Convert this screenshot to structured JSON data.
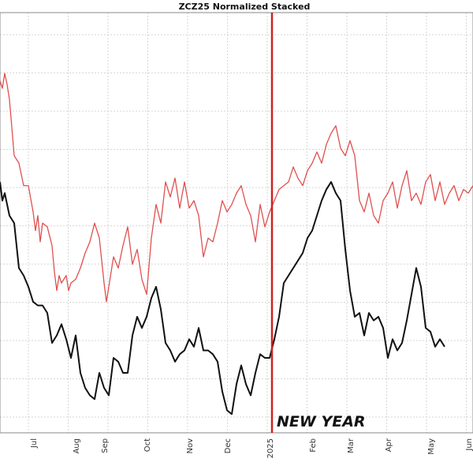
{
  "chart_data": {
    "type": "line",
    "title": "ZCZ25 Normalized Stacked",
    "xlabel": "",
    "ylabel": "",
    "grid": true,
    "legend": "none",
    "x_tick_labels": [
      "Jul",
      "Aug",
      "Sep",
      "Oct",
      "Nov",
      "Dec",
      "2025",
      "Feb",
      "Mar",
      "Apr",
      "May",
      "Jun"
    ],
    "x_range": [
      0,
      100
    ],
    "x_ticks": [
      7,
      16,
      22,
      31,
      40,
      48,
      57,
      66,
      74,
      82,
      91,
      99
    ],
    "vertical_marker": {
      "x": 57.5,
      "label": "NEW YEAR",
      "color": "#cc2222"
    },
    "ylim": [
      0,
      100
    ],
    "series": [
      {
        "color": "#e05050",
        "values": [
          [
            0,
            90
          ],
          [
            0.5,
            88
          ],
          [
            1,
            92
          ],
          [
            1.5,
            89
          ],
          [
            2,
            85
          ],
          [
            3,
            70
          ],
          [
            4,
            68
          ],
          [
            5,
            62
          ],
          [
            6,
            62
          ],
          [
            7,
            55
          ],
          [
            7.5,
            50
          ],
          [
            8,
            54
          ],
          [
            8.5,
            47
          ],
          [
            9,
            52
          ],
          [
            10,
            51
          ],
          [
            11,
            46
          ],
          [
            11.5,
            39
          ],
          [
            12,
            34
          ],
          [
            12.5,
            38
          ],
          [
            13,
            36
          ],
          [
            14,
            38
          ],
          [
            14.5,
            34
          ],
          [
            15,
            36
          ],
          [
            16,
            37
          ],
          [
            17,
            40
          ],
          [
            18,
            44
          ],
          [
            19,
            47
          ],
          [
            20,
            52
          ],
          [
            21,
            48
          ],
          [
            22,
            36
          ],
          [
            22.5,
            31
          ],
          [
            23,
            35
          ],
          [
            24,
            43
          ],
          [
            25,
            40
          ],
          [
            26,
            46
          ],
          [
            27,
            51
          ],
          [
            28,
            41
          ],
          [
            29,
            45
          ],
          [
            30,
            37
          ],
          [
            31,
            33
          ],
          [
            32,
            48
          ],
          [
            33,
            57
          ],
          [
            34,
            52
          ],
          [
            35,
            63
          ],
          [
            36,
            59
          ],
          [
            37,
            64
          ],
          [
            38,
            56
          ],
          [
            39,
            63
          ],
          [
            40,
            56
          ],
          [
            41,
            58
          ],
          [
            42,
            54
          ],
          [
            43,
            43
          ],
          [
            44,
            48
          ],
          [
            45,
            47
          ],
          [
            46,
            52
          ],
          [
            47,
            58
          ],
          [
            48,
            55
          ],
          [
            49,
            57
          ],
          [
            50,
            60
          ],
          [
            51,
            62
          ],
          [
            52,
            57
          ],
          [
            53,
            54
          ],
          [
            54,
            47
          ],
          [
            55,
            57
          ],
          [
            56,
            51
          ],
          [
            57,
            55
          ],
          [
            58,
            58
          ],
          [
            59,
            61
          ],
          [
            60,
            62
          ],
          [
            61,
            63
          ],
          [
            62,
            67
          ],
          [
            63,
            64
          ],
          [
            64,
            62
          ],
          [
            65,
            66
          ],
          [
            66,
            68
          ],
          [
            67,
            71
          ],
          [
            68,
            68
          ],
          [
            69,
            73
          ],
          [
            70,
            76
          ],
          [
            71,
            78
          ],
          [
            72,
            72
          ],
          [
            73,
            70
          ],
          [
            74,
            74
          ],
          [
            75,
            70
          ],
          [
            76,
            58
          ],
          [
            77,
            55
          ],
          [
            78,
            60
          ],
          [
            79,
            54
          ],
          [
            80,
            52
          ],
          [
            81,
            58
          ],
          [
            82,
            60
          ],
          [
            83,
            63
          ],
          [
            84,
            56
          ],
          [
            85,
            62
          ],
          [
            86,
            66
          ],
          [
            87,
            58
          ],
          [
            88,
            60
          ],
          [
            89,
            57
          ],
          [
            90,
            63
          ],
          [
            91,
            65
          ],
          [
            92,
            58
          ],
          [
            93,
            63
          ],
          [
            94,
            57
          ],
          [
            95,
            60
          ],
          [
            96,
            62
          ],
          [
            97,
            58
          ],
          [
            98,
            61
          ],
          [
            99,
            60
          ],
          [
            100,
            62
          ]
        ]
      },
      {
        "color": "#111111",
        "values": [
          [
            0,
            63
          ],
          [
            0.5,
            58
          ],
          [
            1,
            60
          ],
          [
            2,
            54
          ],
          [
            3,
            52
          ],
          [
            4,
            40
          ],
          [
            5,
            38
          ],
          [
            6,
            35
          ],
          [
            7,
            31
          ],
          [
            8,
            30
          ],
          [
            9,
            30
          ],
          [
            10,
            28
          ],
          [
            11,
            20
          ],
          [
            12,
            22
          ],
          [
            13,
            25
          ],
          [
            14,
            21
          ],
          [
            15,
            16
          ],
          [
            16,
            22
          ],
          [
            17,
            12
          ],
          [
            18,
            8
          ],
          [
            19,
            6
          ],
          [
            20,
            5
          ],
          [
            21,
            12
          ],
          [
            22,
            8
          ],
          [
            23,
            6
          ],
          [
            24,
            16
          ],
          [
            25,
            15
          ],
          [
            26,
            12
          ],
          [
            27,
            12
          ],
          [
            28,
            22
          ],
          [
            29,
            27
          ],
          [
            30,
            24
          ],
          [
            31,
            27
          ],
          [
            32,
            32
          ],
          [
            33,
            35
          ],
          [
            34,
            29
          ],
          [
            35,
            20
          ],
          [
            36,
            18
          ],
          [
            37,
            15
          ],
          [
            38,
            17
          ],
          [
            39,
            18
          ],
          [
            40,
            21
          ],
          [
            41,
            19
          ],
          [
            42,
            24
          ],
          [
            43,
            18
          ],
          [
            44,
            18
          ],
          [
            45,
            17
          ],
          [
            46,
            15
          ],
          [
            47,
            7
          ],
          [
            48,
            2
          ],
          [
            49,
            1
          ],
          [
            50,
            9
          ],
          [
            51,
            14
          ],
          [
            52,
            9
          ],
          [
            53,
            6
          ],
          [
            54,
            12
          ],
          [
            55,
            17
          ],
          [
            56,
            16
          ],
          [
            57,
            16
          ],
          [
            58,
            21
          ],
          [
            59,
            27
          ],
          [
            60,
            36
          ],
          [
            61,
            38
          ],
          [
            62,
            40
          ],
          [
            63,
            42
          ],
          [
            64,
            44
          ],
          [
            65,
            48
          ],
          [
            66,
            50
          ],
          [
            67,
            54
          ],
          [
            68,
            58
          ],
          [
            69,
            61
          ],
          [
            70,
            63
          ],
          [
            71,
            60
          ],
          [
            72,
            58
          ],
          [
            73,
            45
          ],
          [
            74,
            34
          ],
          [
            75,
            27
          ],
          [
            76,
            28
          ],
          [
            77,
            22
          ],
          [
            78,
            28
          ],
          [
            79,
            26
          ],
          [
            80,
            27
          ],
          [
            81,
            24
          ],
          [
            82,
            16
          ],
          [
            83,
            21
          ],
          [
            84,
            18
          ],
          [
            85,
            20
          ],
          [
            86,
            26
          ],
          [
            87,
            33
          ],
          [
            88,
            40
          ],
          [
            89,
            35
          ],
          [
            90,
            24
          ],
          [
            91,
            23
          ],
          [
            92,
            19
          ],
          [
            93,
            21
          ],
          [
            94,
            19
          ]
        ]
      }
    ]
  }
}
